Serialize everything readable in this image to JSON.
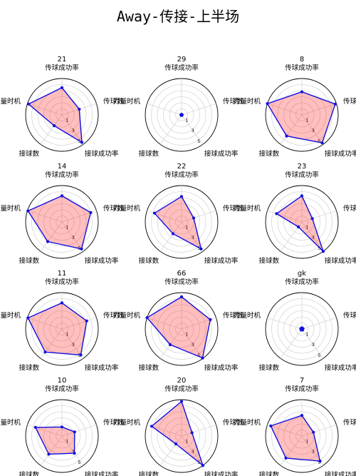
{
  "title": "Away-传接-上半场",
  "chart_data": {
    "type": "radar",
    "title": "Away-传接-上半场",
    "axes": [
      "传球成功率",
      "传球数",
      "接球成功率",
      "接球数",
      "力量时机"
    ],
    "rmax": 6,
    "rings": [
      1,
      2,
      3,
      4,
      5,
      6
    ],
    "tick_labels": [
      "1",
      "3",
      "5"
    ],
    "tick_values": [
      1,
      3,
      5
    ],
    "grid": true,
    "colors": {
      "line": "#1010e0",
      "fill": "#ff0000"
    },
    "panels": [
      {
        "name": "21",
        "values": [
          4.5,
          3.0,
          5.6,
          2.2,
          5.8
        ]
      },
      {
        "name": "29",
        "values": [
          0.1,
          0.1,
          0.1,
          0.1,
          0.1
        ]
      },
      {
        "name": "8",
        "values": [
          3.8,
          5.8,
          5.7,
          4.3,
          6.0
        ]
      },
      {
        "name": "14",
        "values": [
          4.3,
          5.0,
          5.5,
          4.0,
          5.9
        ]
      },
      {
        "name": "22",
        "values": [
          4.2,
          2.1,
          5.5,
          2.4,
          4.7
        ]
      },
      {
        "name": "23",
        "values": [
          4.3,
          1.8,
          6.0,
          1.0,
          4.4
        ]
      },
      {
        "name": "11",
        "values": [
          4.3,
          4.3,
          5.3,
          4.7,
          5.9
        ]
      },
      {
        "name": "66",
        "values": [
          5.3,
          5.0,
          5.9,
          3.2,
          6.0
        ]
      },
      {
        "name": "gk",
        "values": [
          0.2,
          0.2,
          0.2,
          0.2,
          0.2
        ]
      },
      {
        "name": "10",
        "values": [
          1.5,
          2.2,
          3.5,
          3.7,
          4.6
        ]
      },
      {
        "name": "20",
        "values": [
          5.7,
          1.8,
          6.0,
          1.6,
          5.2
        ]
      },
      {
        "name": "7",
        "values": [
          3.4,
          2.0,
          5.1,
          4.5,
          5.4
        ]
      }
    ]
  }
}
